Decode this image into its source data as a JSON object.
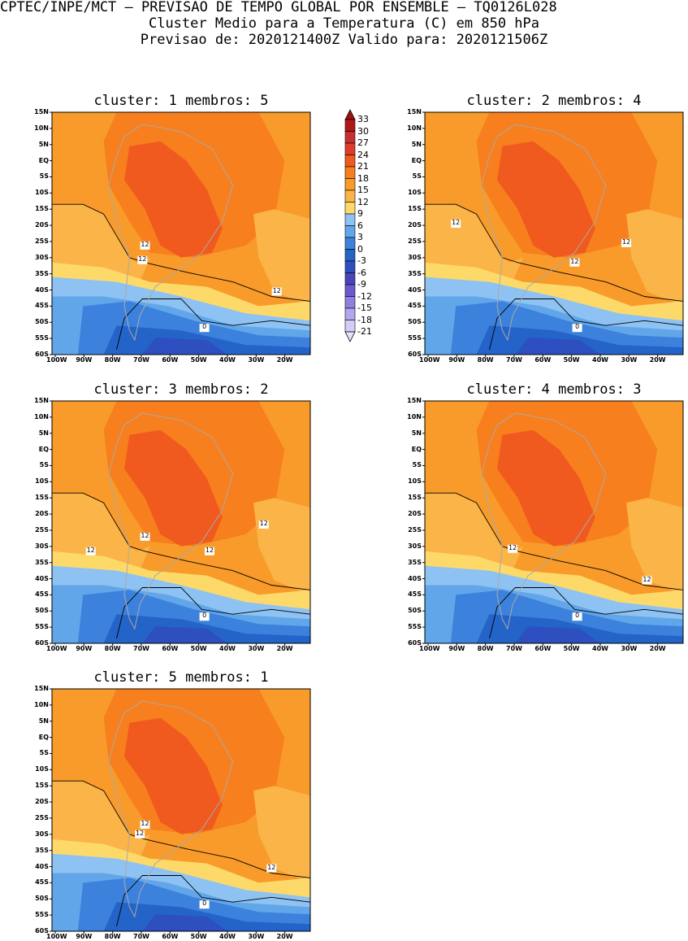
{
  "header": {
    "line1": "CPTEC/INPE/MCT – PREVISAO DE TEMPO GLOBAL POR ENSEMBLE – TQ0126L028",
    "line2": "Cluster Medio para a Temperatura (C) em 850 hPa",
    "line3": "Previsao de: 2020121400Z    Valido para: 2020121506Z"
  },
  "panels": [
    {
      "title": "cluster: 1  membros: 5",
      "labels": [
        "12",
        "12",
        "12",
        "0"
      ]
    },
    {
      "title": "cluster: 2  membros: 4",
      "labels": [
        "12",
        "12",
        "12",
        "0"
      ]
    },
    {
      "title": "cluster: 3  membros: 2",
      "labels": [
        "12",
        "12",
        "12",
        "12",
        "0"
      ]
    },
    {
      "title": "cluster: 4  membros: 3",
      "labels": [
        "12",
        "12",
        "0"
      ]
    },
    {
      "title": "cluster: 5  membros: 1",
      "labels": [
        "12",
        "12",
        "12",
        "0"
      ]
    }
  ],
  "axes": {
    "lat_ticks": [
      "15N",
      "10N",
      "5N",
      "EQ",
      "5S",
      "10S",
      "15S",
      "20S",
      "25S",
      "30S",
      "35S",
      "40S",
      "45S",
      "50S",
      "55S",
      "60S"
    ],
    "lon_ticks": [
      "100W",
      "90W",
      "80W",
      "70W",
      "60W",
      "50W",
      "40W",
      "30W",
      "20W"
    ]
  },
  "colorbar": {
    "levels": [
      "33",
      "30",
      "27",
      "24",
      "21",
      "18",
      "15",
      "12",
      "9",
      "6",
      "3",
      "0",
      "-3",
      "-6",
      "-9",
      "-12",
      "-15",
      "-18",
      "-21"
    ],
    "colors": {
      "top_arrow": "#a01010",
      "r1": "#b01818",
      "r2": "#c83030",
      "r3": "#e03c2c",
      "r4": "#f05a1e",
      "o1": "#f77f1e",
      "o2": "#f89b2a",
      "o3": "#fbb447",
      "y1": "#fdd96a",
      "b1": "#8ec2f2",
      "b2": "#62a6ea",
      "b3": "#3c82dc",
      "b4": "#2463c8",
      "b5": "#2d4fbf",
      "p1": "#4a44bc",
      "p2": "#6a5ad0",
      "p3": "#8f7fe0",
      "p4": "#b4a6ee",
      "p5": "#d6ccf8",
      "bottom_arrow": "#e8e0fc"
    }
  }
}
